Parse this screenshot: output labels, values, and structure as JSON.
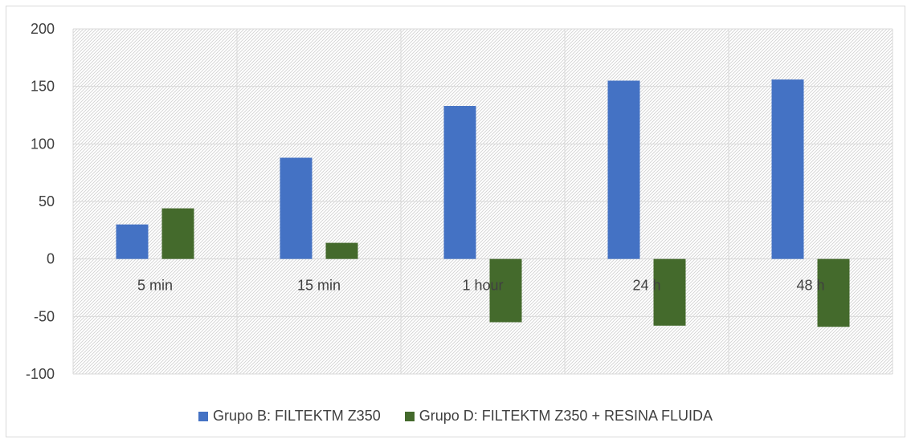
{
  "chart_data": {
    "type": "bar",
    "categories": [
      "5 min",
      "15 min",
      "1 hour",
      "24 h",
      "48 h"
    ],
    "series": [
      {
        "name": "Grupo B: FILTEKTM Z350",
        "color": "#4472c4",
        "values": [
          30,
          88,
          133,
          155,
          156
        ]
      },
      {
        "name": "Grupo D: FILTEKTM Z350 + RESINA FLUIDA",
        "color": "#446a2c",
        "values": [
          44,
          14,
          -55,
          -58,
          -59
        ]
      }
    ],
    "ylim": [
      -100,
      200
    ],
    "yticks": [
      200,
      150,
      100,
      50,
      0,
      -50,
      -100
    ],
    "grid": true,
    "legend_position": "bottom"
  }
}
